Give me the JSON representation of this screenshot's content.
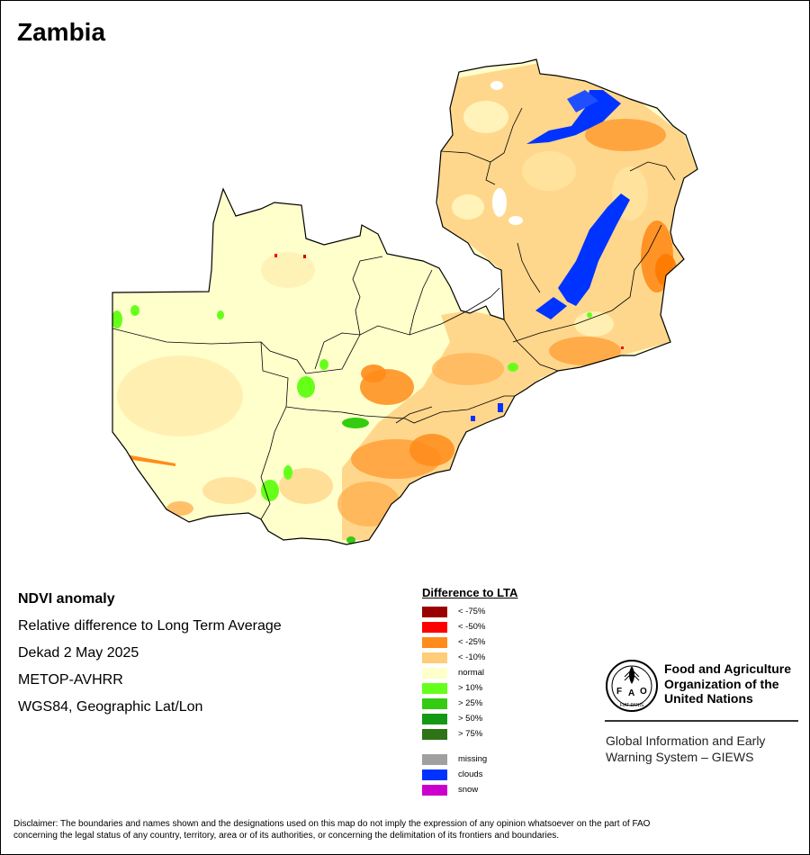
{
  "map": {
    "title": "Zambia",
    "subject": "NDVI anomaly",
    "details": [
      "Relative difference to Long Term Average",
      "Dekad 2 May 2025",
      "METOP-AVHRR",
      "WGS84, Geographic Lat/Lon"
    ]
  },
  "legend": {
    "title": "Difference to LTA",
    "items": [
      {
        "label": "< -75%",
        "color": "#9a0000"
      },
      {
        "label": "< -50%",
        "color": "#ff0000"
      },
      {
        "label": "< -25%",
        "color": "#ff8c1a"
      },
      {
        "label": "< -10%",
        "color": "#ffcc77"
      },
      {
        "label": "normal",
        "color": "#ffffcc"
      },
      {
        "label": "> 10%",
        "color": "#66ff1a"
      },
      {
        "label": "> 25%",
        "color": "#33cc11"
      },
      {
        "label": "> 50%",
        "color": "#149914"
      },
      {
        "label": "> 75%",
        "color": "#2e7316"
      },
      {
        "label": "missing",
        "color": "#a0a0a0"
      },
      {
        "label": "clouds",
        "color": "#0033ff"
      },
      {
        "label": "snow",
        "color": "#cc00cc"
      }
    ]
  },
  "organization": {
    "name_line1": "Food and Agriculture",
    "name_line2": "Organization of the",
    "name_line3": "United Nations",
    "logo_text": "FAO",
    "logo_motto": "FIAT PANIS",
    "system_line1": "Global Information and Early",
    "system_line2": "Warning System – GIEWS"
  },
  "disclaimer": {
    "line1": "Disclaimer: The boundaries and names shown and the designations used on this map do not imply the expression of any opinion whatsoever on the part of FAO",
    "line2": "concerning the legal status of any country, territory, area or of its authorities, or concerning the delimitation of its frontiers and boundaries."
  }
}
